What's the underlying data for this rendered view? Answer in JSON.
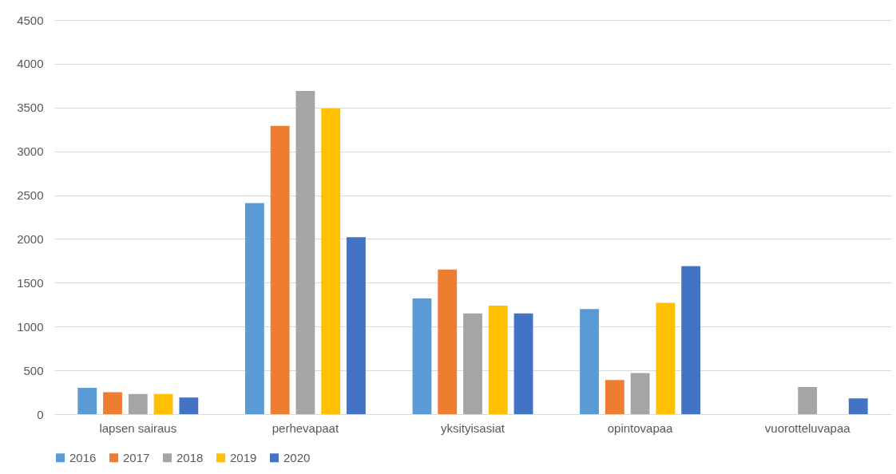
{
  "chart_data": {
    "type": "bar",
    "categories": [
      "lapsen sairaus",
      "perhevapaat",
      "yksityisasiat",
      "opintovapaa",
      "vuorotteluvapaa"
    ],
    "series": [
      {
        "name": "2016",
        "color": "#5b9bd5",
        "values": [
          300,
          2410,
          1320,
          1200,
          null
        ]
      },
      {
        "name": "2017",
        "color": "#ed7d31",
        "values": [
          250,
          3290,
          1650,
          390,
          null
        ]
      },
      {
        "name": "2018",
        "color": "#a5a5a5",
        "values": [
          230,
          3690,
          1150,
          470,
          310
        ]
      },
      {
        "name": "2019",
        "color": "#ffc000",
        "values": [
          230,
          3490,
          1240,
          1270,
          null
        ]
      },
      {
        "name": "2020",
        "color": "#4472c4",
        "values": [
          190,
          2020,
          1150,
          1690,
          180
        ]
      }
    ],
    "ylim": [
      0,
      4500
    ],
    "yticks": [
      0,
      500,
      1000,
      1500,
      2000,
      2500,
      3000,
      3500,
      4000,
      4500
    ],
    "grid": "y",
    "legend": "bottom"
  }
}
